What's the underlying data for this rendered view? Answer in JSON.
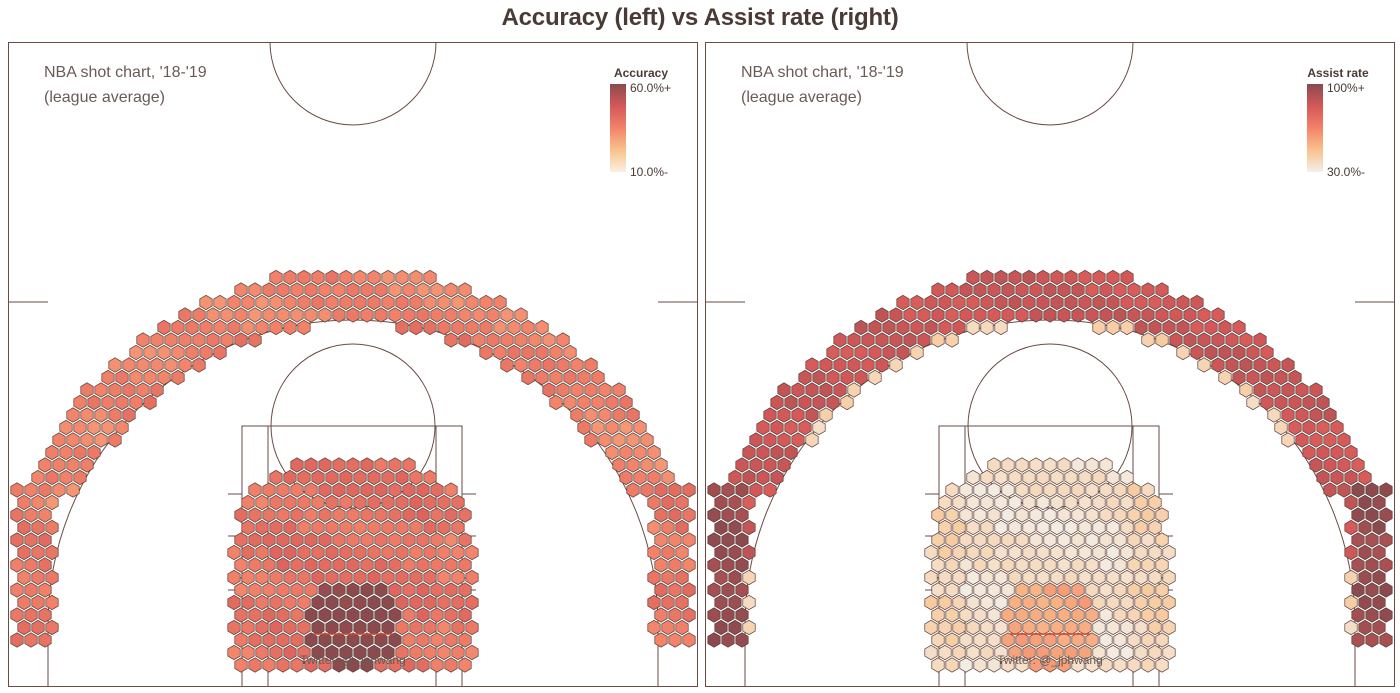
{
  "title": "Accuracy (left) vs Assist rate (right)",
  "chart_data": [
    {
      "type": "heatmap",
      "subtype": "hexbin shot chart",
      "caption_line1": "NBA shot chart, '18-'19",
      "caption_line2": "(league average)",
      "credit": "Twitter: @_jphwang",
      "colorbar": {
        "title": "Accuracy",
        "max_label": "60.0%+",
        "min_label": "10.0%-",
        "min": 0.1,
        "max": 0.6
      },
      "colors": [
        "#fbf0df",
        "#f8c28d",
        "#f2836a",
        "#d45858",
        "#8a4a4e"
      ],
      "zones": [
        {
          "zone": "restricted area",
          "value": 0.62
        },
        {
          "zone": "paint (non-RA)",
          "value": 0.4
        },
        {
          "zone": "mid-range",
          "value": 0.38
        },
        {
          "zone": "corner three",
          "value": 0.38
        },
        {
          "zone": "above-the-break three",
          "value": 0.35
        }
      ]
    },
    {
      "type": "heatmap",
      "subtype": "hexbin shot chart",
      "caption_line1": "NBA shot chart, '18-'19",
      "caption_line2": "(league average)",
      "credit": "Twitter: @_jphwang",
      "colorbar": {
        "title": "Assist rate",
        "max_label": "100%+",
        "min_label": "30.0%-",
        "min": 0.3,
        "max": 1.0
      },
      "colors": [
        "#f3efe9",
        "#f8c28d",
        "#f2836a",
        "#d45858",
        "#8a4a4e"
      ],
      "zones": [
        {
          "zone": "restricted area",
          "value": 0.55
        },
        {
          "zone": "paint (non-RA)",
          "value": 0.35
        },
        {
          "zone": "mid-range",
          "value": 0.4
        },
        {
          "zone": "corner three",
          "value": 0.96
        },
        {
          "zone": "above-the-break three",
          "value": 0.84
        }
      ]
    }
  ]
}
